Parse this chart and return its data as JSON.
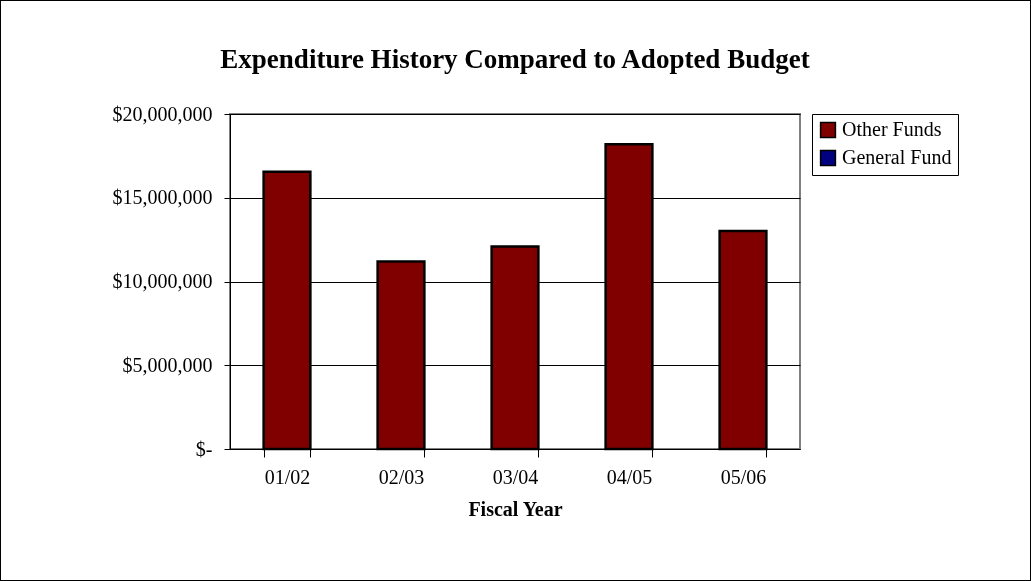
{
  "chart_data": {
    "type": "bar",
    "title": "Expenditure History Compared to Adopted Budget",
    "xlabel": "Fiscal Year",
    "categories": [
      "01/02",
      "02/03",
      "03/04",
      "04/05",
      "05/06"
    ],
    "series": [
      {
        "name": "Other Funds",
        "color": "#800000",
        "values": [
          16550000,
          11190000,
          12090000,
          18200000,
          13020000
        ]
      },
      {
        "name": "General Fund",
        "color": "#000080",
        "values": [
          null,
          null,
          null,
          null,
          null
        ]
      }
    ],
    "ylim": [
      0,
      20000000
    ],
    "yticks": [
      {
        "value": 0,
        "label": "$-"
      },
      {
        "value": 5000000,
        "label": "$5,000,000"
      },
      {
        "value": 10000000,
        "label": "$10,000,000"
      },
      {
        "value": 15000000,
        "label": "$15,000,000"
      },
      {
        "value": 20000000,
        "label": "$20,000,000"
      }
    ],
    "grid": "y",
    "legend": "right"
  }
}
